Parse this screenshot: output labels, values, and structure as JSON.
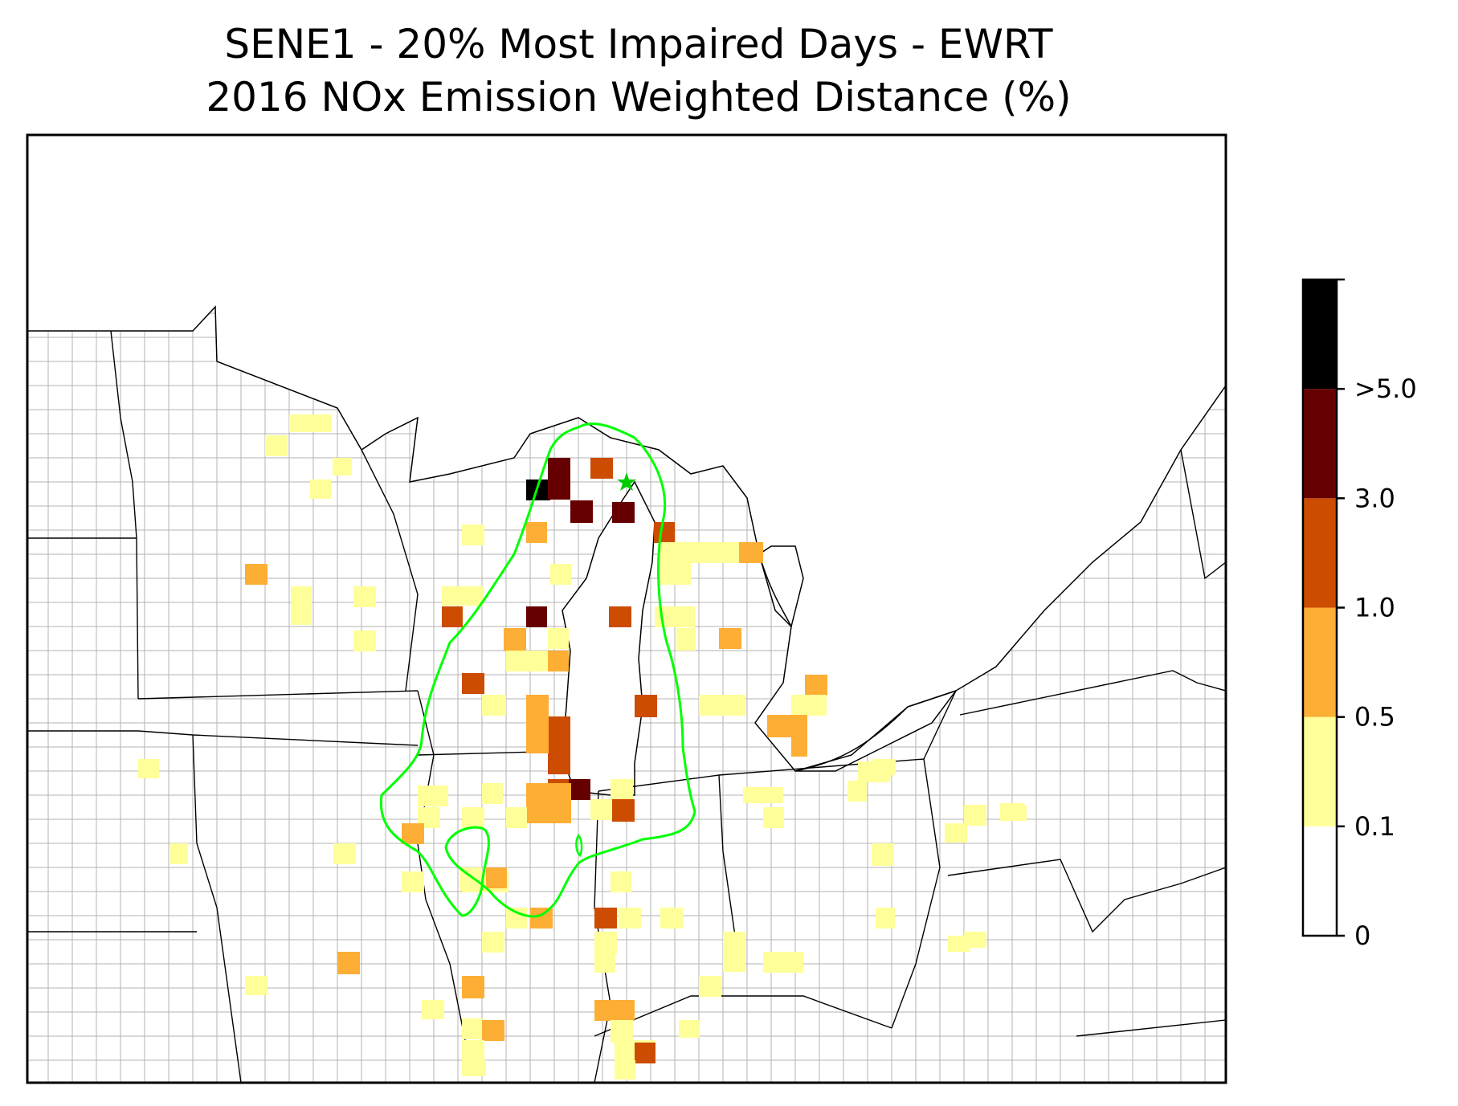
{
  "title": {
    "line1": "SENE1 - 20% Most Impaired Days - EWRT",
    "line2": "2016 NOx Emission Weighted Distance (%)"
  },
  "colorbar": {
    "bins": [
      {
        "label": "0",
        "color": "#ffffff"
      },
      {
        "label": "0.1",
        "color": "#ffff99"
      },
      {
        "label": "0.5",
        "color": "#fdae35"
      },
      {
        "label": "1.0",
        "color": "#cc4c02"
      },
      {
        "label": "3.0",
        "color": "#660000"
      },
      {
        "label": ">5.0",
        "color": "#000000"
      }
    ]
  },
  "colors": {
    "contour": "#00ff00",
    "site_marker": "#00cc00",
    "state_border": "#000000",
    "county_border": "#aaaaaa"
  },
  "site": {
    "name": "SENE1",
    "icon": "star-icon"
  },
  "legend": {
    "placement": "right"
  }
}
